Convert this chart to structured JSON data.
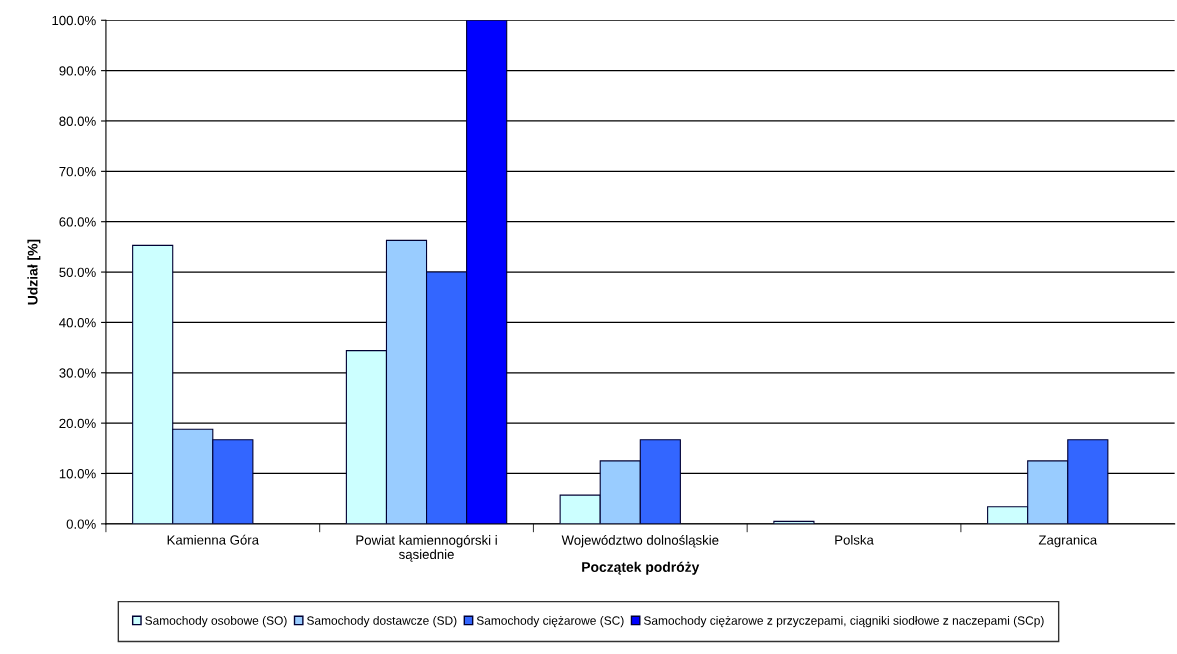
{
  "chart_data": {
    "type": "bar",
    "xlabel": "Początek podróży",
    "ylabel": "Udział [%]",
    "categories": [
      "Kamienna Góra",
      "Powiat kamiennogórski i sąsiednie",
      "Województwo dolnośląskie",
      "Polska",
      "Zagranica"
    ],
    "series": [
      {
        "name": "Samochody osobowe (SO)",
        "color": "#ccffff",
        "values": [
          55.3,
          34.4,
          5.7,
          0.5,
          3.4
        ]
      },
      {
        "name": "Samochody dostawcze (SD)",
        "color": "#99ccff",
        "values": [
          18.8,
          56.3,
          12.5,
          0,
          12.5
        ]
      },
      {
        "name": "Samochody ciężarowe (SC)",
        "color": "#3366ff",
        "values": [
          16.7,
          50.0,
          16.7,
          0,
          16.7
        ]
      },
      {
        "name": "Samochody ciężarowe z przyczepami, ciągniki siodłowe z naczepami (SCp)",
        "color": "#0000ff",
        "values": [
          0,
          100.0,
          0,
          0,
          0
        ]
      }
    ],
    "ylim": [
      0,
      100
    ],
    "yticks": [
      {
        "value": 0,
        "label": "0.0%"
      },
      {
        "value": 10,
        "label": "10.0%"
      },
      {
        "value": 20,
        "label": "20.0%"
      },
      {
        "value": 30,
        "label": "30.0%"
      },
      {
        "value": 40,
        "label": "40.0%"
      },
      {
        "value": 50,
        "label": "50.0%"
      },
      {
        "value": 60,
        "label": "60.0%"
      },
      {
        "value": 70,
        "label": "70.0%"
      },
      {
        "value": 80,
        "label": "80.0%"
      },
      {
        "value": 90,
        "label": "90.0%"
      },
      {
        "value": 100,
        "label": "100.0%"
      }
    ],
    "grid": "y",
    "legend": "bottom"
  }
}
